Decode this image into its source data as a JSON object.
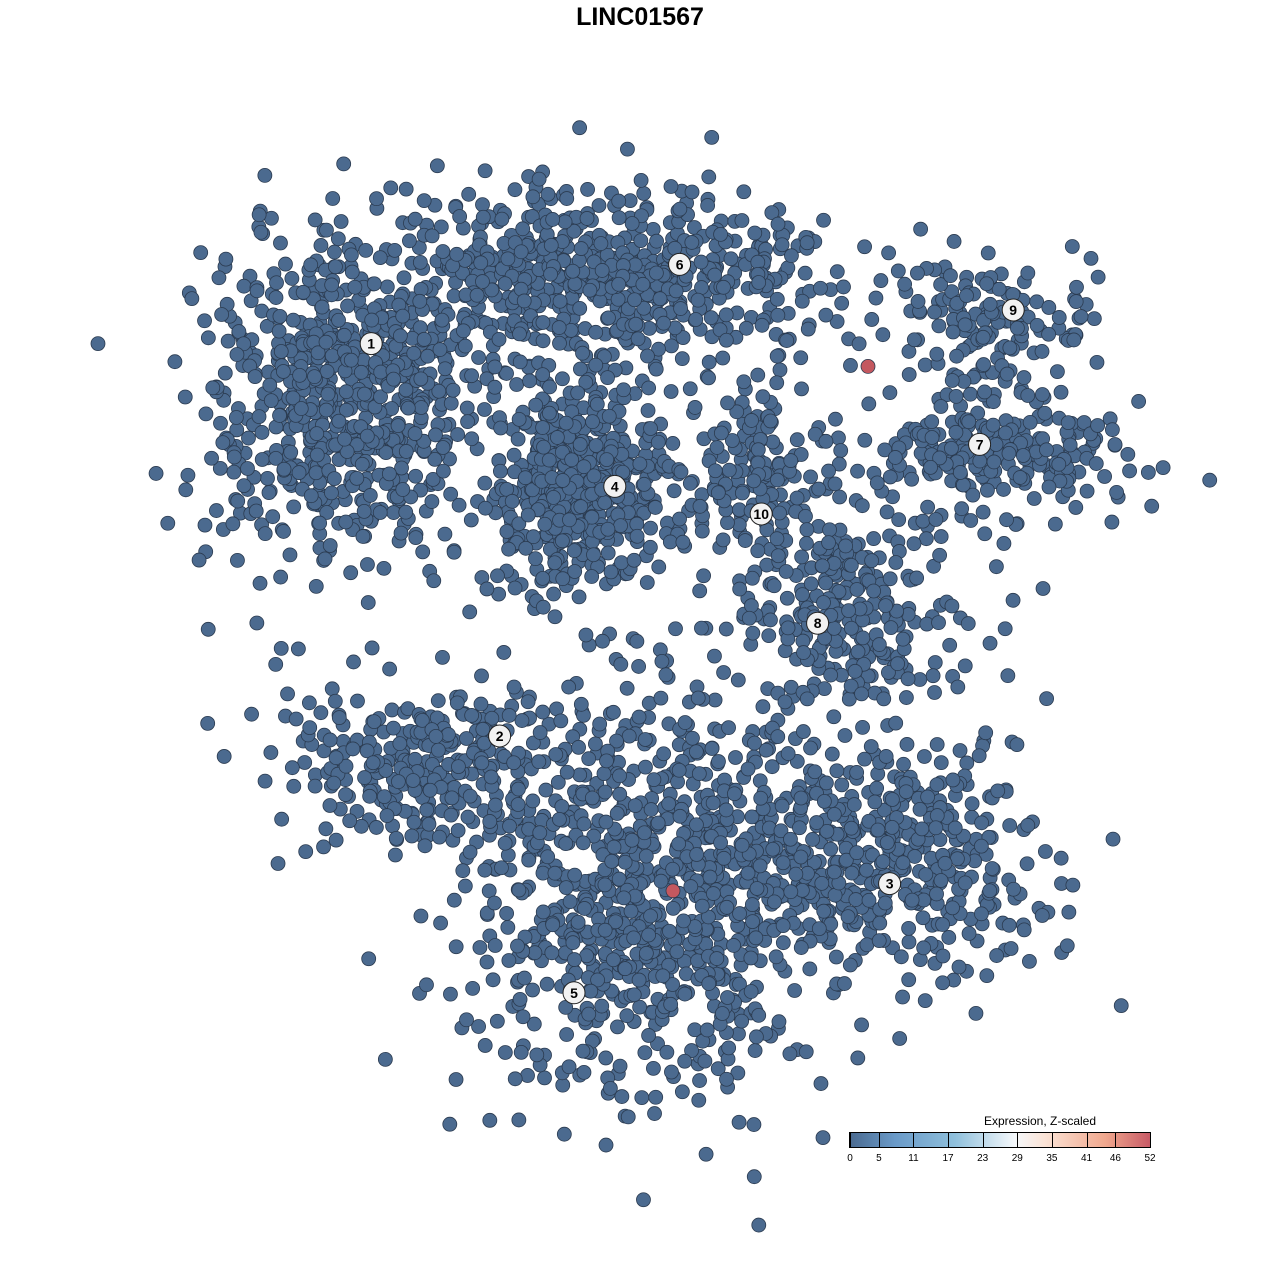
{
  "title": "LINC01567",
  "chart_data": {
    "type": "scatter",
    "title": "LINC01567",
    "xlabel": "",
    "ylabel": "",
    "xlim": [
      -38,
      42
    ],
    "ylim": [
      -38,
      38
    ],
    "grid": false,
    "axes_visible": false,
    "point_color": "#4b6a8f",
    "point_outline": "#2b3b50",
    "highlight_color": "#c4585f",
    "clusters": [
      {
        "label": "1",
        "center": [
          -25,
          20
        ],
        "sd": [
          5.8,
          6.7
        ],
        "n": 700,
        "label_at": [
          -22.4,
          24.7
        ]
      },
      {
        "label": "6",
        "center": [
          -3.3,
          30
        ],
        "sd": [
          10,
          3.8
        ],
        "n": 700,
        "label_at": [
          3.3,
          31.3
        ]
      },
      {
        "label": "4",
        "center": [
          -5,
          12.5
        ],
        "sd": [
          3.8,
          3.8
        ],
        "n": 500,
        "label_at": [
          -2.1,
          12.8
        ]
      },
      {
        "label": "10",
        "center": [
          10,
          14.2
        ],
        "sd": [
          3.3,
          3.3
        ],
        "n": 150,
        "label_at": [
          10.1,
          10.5
        ]
      },
      {
        "label": "9",
        "center": [
          29.2,
          26.7
        ],
        "sd": [
          4.2,
          2.5
        ],
        "n": 150,
        "label_at": [
          31.1,
          27.5
        ]
      },
      {
        "label": "7",
        "center": [
          30,
          15.8
        ],
        "sd": [
          5.8,
          2.5
        ],
        "n": 250,
        "label_at": [
          28.3,
          16.3
        ]
      },
      {
        "label": "8",
        "center": [
          17.5,
          2.5
        ],
        "sd": [
          5,
          4.5
        ],
        "n": 300,
        "label_at": [
          14.8,
          1.4
        ]
      },
      {
        "label": "2",
        "center": [
          -18.3,
          -10.8
        ],
        "sd": [
          5.8,
          3.3
        ],
        "n": 300,
        "label_at": [
          -11.7,
          -8
        ]
      },
      {
        "label": "3",
        "center": [
          20,
          -18.3
        ],
        "sd": [
          6.7,
          5
        ],
        "n": 500,
        "label_at": [
          20.8,
          -20.3
        ]
      },
      {
        "label": "5",
        "center": [
          0,
          -21.7
        ],
        "sd": [
          7.5,
          9
        ],
        "n": 900,
        "label_at": [
          -5.5,
          -29.4
        ]
      }
    ],
    "highlighted_points": [
      {
        "x": 19,
        "y": 22.8,
        "value": 52
      },
      {
        "x": 2.75,
        "y": -20.9,
        "value": 52
      }
    ],
    "colorbar": {
      "title": "Expression, Z-scaled",
      "ticks": [
        "0",
        "5",
        "11",
        "17",
        "23",
        "29",
        "35",
        "41",
        "46",
        "52"
      ],
      "range": [
        0,
        52
      ],
      "colors": [
        "#4a6a90",
        "#6a9ac8",
        "#8fc0dc",
        "#f5f8fb",
        "#fbe3d6",
        "#f0a88e",
        "#c85a66"
      ],
      "placement": "bottom-right"
    }
  }
}
